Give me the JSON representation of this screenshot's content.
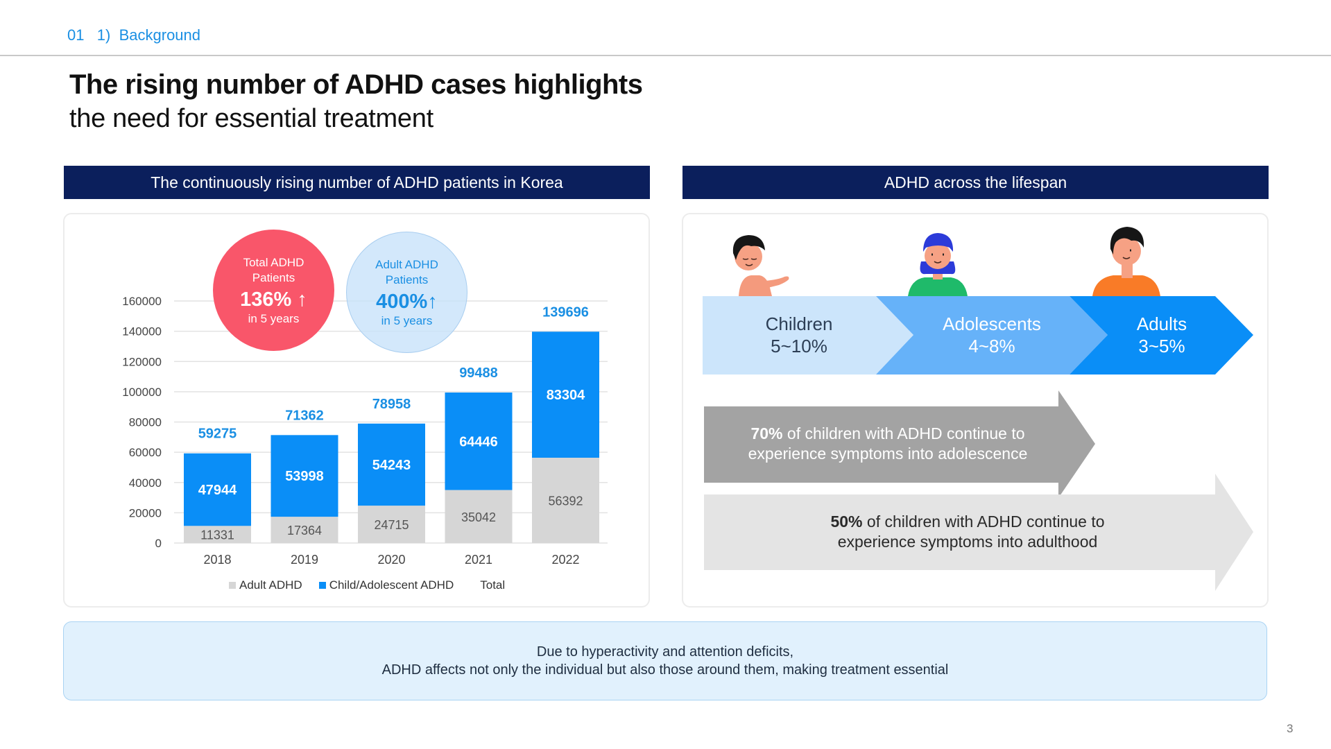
{
  "header": {
    "section_label": "01   1)  Background",
    "title_line1": "The rising number of ADHD cases highlights",
    "title_line2": "the need for essential treatment"
  },
  "left_panel": {
    "header": "The continuously rising number of ADHD patients in Korea",
    "bubbles": [
      {
        "label_line1": "Total ADHD",
        "label_line2": "Patients",
        "value": "136% ↑",
        "sub": "in 5 years",
        "color": "#f9566a"
      },
      {
        "label_line1": "Adult ADHD",
        "label_line2": "Patients",
        "value": "400%↑",
        "sub": "in 5 years",
        "color": "#1a8fe3"
      }
    ]
  },
  "chart_data": {
    "type": "bar",
    "stacked": true,
    "title": "The continuously rising number of ADHD patients in Korea",
    "xlabel": "",
    "ylabel": "",
    "categories": [
      "2018",
      "2019",
      "2020",
      "2021",
      "2022"
    ],
    "series": [
      {
        "name": "Adult ADHD",
        "values": [
          11331,
          17364,
          24715,
          35042,
          56392
        ],
        "color": "#d6d6d6"
      },
      {
        "name": "Child/Adolescent ADHD",
        "values": [
          47944,
          53998,
          54243,
          64446,
          83304
        ],
        "color": "#0a8ef7"
      }
    ],
    "totals": {
      "name": "Total",
      "values": [
        59275,
        71362,
        78958,
        99488,
        139696
      ],
      "color": "#1a8fe3"
    },
    "yticks": [
      0,
      20000,
      40000,
      60000,
      80000,
      100000,
      120000,
      140000,
      160000
    ],
    "ylim": [
      0,
      160000
    ],
    "grid": true,
    "legend": {
      "position": "bottom",
      "entries": [
        "Adult ADHD",
        "Child/Adolescent ADHD",
        "Total"
      ]
    }
  },
  "right_panel": {
    "header": "ADHD across the lifespan",
    "stages": [
      {
        "name": "Children",
        "range": "5~10%",
        "color": "#cce5fb",
        "icon": "child-figure-icon"
      },
      {
        "name": "Adolescents",
        "range": "4~8%",
        "color": "#66b2f9",
        "icon": "adolescent-figure-icon"
      },
      {
        "name": "Adults",
        "range": "3~5%",
        "color": "#0a8ef7",
        "icon": "adult-figure-icon"
      }
    ],
    "persistence": [
      {
        "percent": "70%",
        "line1_rest": " of children with ADHD continue to",
        "line2": "experience symptoms into adolescence",
        "color": "#a3a3a3"
      },
      {
        "percent": "50%",
        "line1_rest": " of children with ADHD continue to",
        "line2": "experience symptoms into adulthood",
        "color": "#e4e4e4"
      }
    ]
  },
  "footer": {
    "note_line1": "Due to hyperactivity and attention deficits,",
    "note_line2": "ADHD affects not only the individual but also those around them, making treatment essential",
    "page_number": "3"
  }
}
